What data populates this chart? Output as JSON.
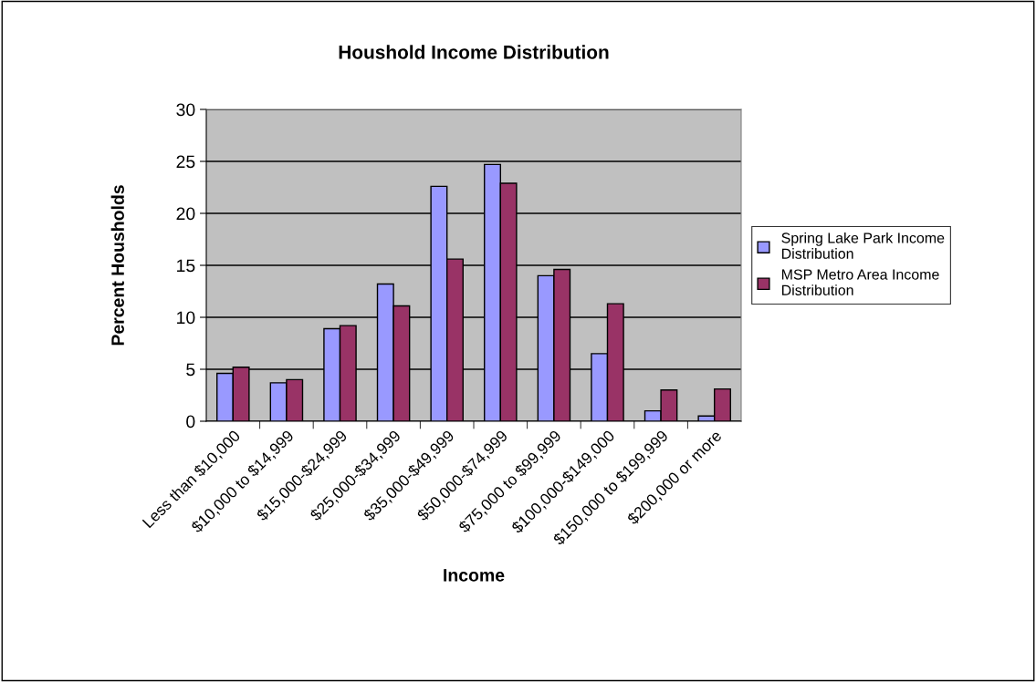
{
  "chart_data": {
    "type": "bar",
    "title": "Houshold Income Distribution",
    "xlabel": "Income",
    "ylabel": "Percent Housholds",
    "categories": [
      "Less than $10,000",
      "$10,000 to $14,999",
      "$15,000-$24,999",
      "$25,000-$34,999",
      "$35,000-$49,999",
      "$50,000-$74,999",
      "$75,000 to $99,999",
      "$100,000-$149,000",
      "$150,000 to $199,999",
      "$200,000 or more"
    ],
    "series": [
      {
        "name": "Spring Lake Park Income Distribution",
        "color": "#9999ff",
        "values": [
          4.6,
          3.7,
          8.9,
          13.2,
          22.6,
          24.7,
          14.0,
          6.5,
          1.0,
          0.5
        ]
      },
      {
        "name": "MSP Metro Area Income Distribution",
        "color": "#993366",
        "values": [
          5.2,
          4.0,
          9.2,
          11.1,
          15.6,
          22.9,
          14.6,
          11.3,
          3.0,
          3.1
        ]
      }
    ],
    "ylim": [
      0,
      30
    ],
    "yticks": [
      0,
      5,
      10,
      15,
      20,
      25,
      30
    ],
    "grid": "y",
    "legend": "right"
  }
}
